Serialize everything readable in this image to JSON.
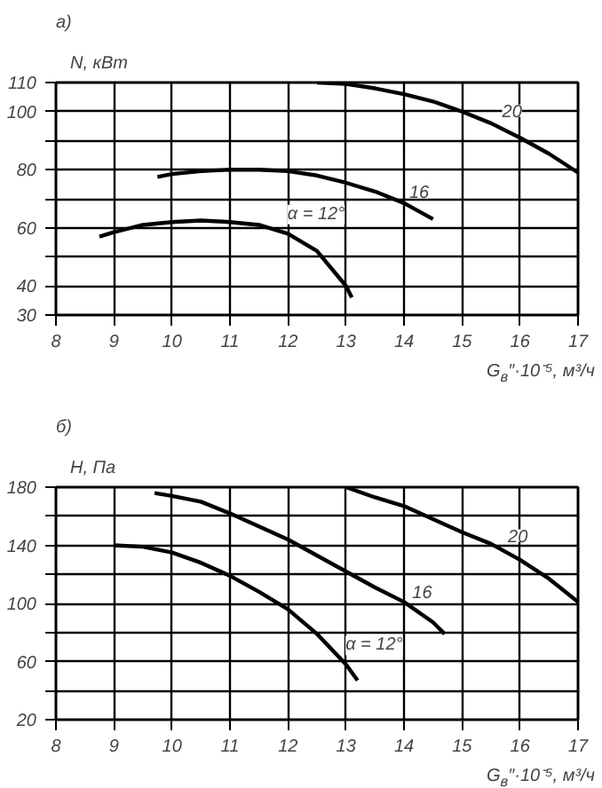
{
  "chart_data": [
    {
      "type": "line",
      "title": "а)",
      "ylabel": "N, кВт",
      "xlabel": "G$_{в}$″·10⁻⁵, м³/ч",
      "xlim": [
        8,
        17
      ],
      "xticks": [
        8,
        9,
        10,
        11,
        12,
        13,
        14,
        15,
        16,
        17
      ],
      "ylim": [
        30,
        110
      ],
      "yticks": [
        30,
        40,
        {
          "value": 50,
          "label": null
        },
        60,
        {
          "value": 70,
          "label": null
        },
        80,
        {
          "value": 90,
          "label": null
        },
        100,
        110
      ],
      "grid": true,
      "marker": "none",
      "line_style": "solid",
      "series": [
        {
          "color": "#000000",
          "x": [
            8.75,
            9,
            9.5,
            10,
            10.5,
            11,
            11.5,
            12,
            12.5,
            13,
            13.1
          ],
          "values": [
            57,
            58.5,
            61,
            62,
            62.5,
            62,
            61,
            58,
            52,
            40,
            36
          ]
        },
        {
          "color": "#000000",
          "x": [
            9.75,
            10,
            10.5,
            11,
            11.5,
            12,
            12.5,
            13,
            13.5,
            14,
            14.5
          ],
          "values": [
            77.5,
            78.5,
            79.5,
            80,
            80,
            79.5,
            78,
            75.5,
            72.5,
            68.5,
            63
          ]
        },
        {
          "color": "#000000",
          "x": [
            12.5,
            13,
            13.5,
            14,
            14.5,
            15,
            15.5,
            16,
            16.5,
            17
          ],
          "values": [
            110,
            109.5,
            108,
            106,
            103.5,
            100,
            96,
            91,
            85.5,
            79
          ]
        }
      ],
      "annotations": [
        {
          "text": "α = 12°",
          "x": 11.9,
          "y": 60
        },
        {
          "text": "16",
          "x": 14,
          "y": 69
        },
        {
          "text": "20",
          "x": 15.6,
          "y": 97
        }
      ]
    },
    {
      "type": "line",
      "title": "б)",
      "ylabel": "H, Па",
      "xlabel": "G$_{в}$″·10⁻⁵, м³/ч",
      "xlim": [
        8,
        17
      ],
      "xticks": [
        8,
        9,
        10,
        11,
        12,
        13,
        14,
        15,
        16,
        17
      ],
      "ylim": [
        20,
        180
      ],
      "yticks": [
        20,
        {
          "value": 40,
          "label": null
        },
        60,
        {
          "value": 80,
          "label": null
        },
        100,
        {
          "value": 120,
          "label": null
        },
        140,
        {
          "value": 160,
          "label": null
        },
        180
      ],
      "grid": true,
      "marker": "none",
      "line_style": "solid",
      "series": [
        {
          "color": "#000000",
          "x": [
            9,
            9.5,
            10,
            10.5,
            11,
            11.5,
            12,
            12.5,
            13,
            13.2
          ],
          "values": [
            140,
            139,
            135,
            128,
            119,
            108,
            96,
            79,
            58,
            47
          ]
        },
        {
          "color": "#000000",
          "x": [
            9.7,
            10,
            10.5,
            11,
            11.5,
            12,
            12.5,
            13,
            13.5,
            14,
            14.5,
            14.7
          ],
          "values": [
            176,
            174,
            170,
            162,
            153,
            144,
            133,
            122,
            111,
            101,
            87,
            79
          ]
        },
        {
          "color": "#000000",
          "x": [
            13,
            13.5,
            14,
            14.5,
            15,
            15.5,
            16,
            16.5,
            17
          ],
          "values": [
            180,
            173,
            167,
            158,
            149,
            141,
            130,
            117,
            101
          ]
        }
      ],
      "annotations": [
        {
          "text": "α = 12°",
          "x": 12.9,
          "y": 62
        },
        {
          "text": "16",
          "x": 14.05,
          "y": 101
        },
        {
          "text": "20",
          "x": 15.7,
          "y": 140
        }
      ]
    }
  ]
}
